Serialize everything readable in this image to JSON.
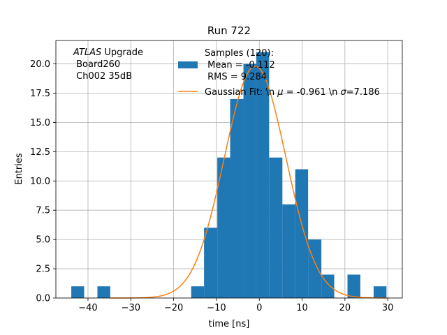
{
  "chart_data": {
    "type": "bar",
    "title": "Run 722",
    "xlabel": "time [ns]",
    "ylabel": "Entries",
    "xlim": [
      -47.5,
      33.4
    ],
    "ylim": [
      0,
      22
    ],
    "grid": true,
    "xticks": [
      -40,
      -30,
      -20,
      -10,
      0,
      10,
      20,
      30
    ],
    "xtick_labels": [
      "−40",
      "−30",
      "−20",
      "−10",
      "0",
      "10",
      "20",
      "30"
    ],
    "yticks": [
      0,
      2.5,
      5,
      7.5,
      10,
      12.5,
      15,
      17.5,
      20
    ],
    "ytick_labels": [
      "0.0",
      "2.5",
      "5.0",
      "7.5",
      "10.0",
      "12.5",
      "15.0",
      "17.5",
      "20.0"
    ],
    "bar_color": "#1f77b4",
    "fit_color": "#ff7f0e",
    "bins": [
      {
        "x0": -43.9,
        "x1": -40.9,
        "count": 1
      },
      {
        "x0": -37.8,
        "x1": -34.8,
        "count": 1
      },
      {
        "x0": -15.9,
        "x1": -12.9,
        "count": 1
      },
      {
        "x0": -12.9,
        "x1": -9.8,
        "count": 6
      },
      {
        "x0": -9.8,
        "x1": -6.8,
        "count": 12
      },
      {
        "x0": -6.8,
        "x1": -3.7,
        "count": 17
      },
      {
        "x0": -3.7,
        "x1": -0.7,
        "count": 20
      },
      {
        "x0": -0.7,
        "x1": 2.3,
        "count": 21
      },
      {
        "x0": 2.3,
        "x1": 5.4,
        "count": 12
      },
      {
        "x0": 5.4,
        "x1": 8.4,
        "count": 8
      },
      {
        "x0": 8.4,
        "x1": 11.4,
        "count": 11
      },
      {
        "x0": 11.4,
        "x1": 14.5,
        "count": 5
      },
      {
        "x0": 14.5,
        "x1": 17.5,
        "count": 2
      },
      {
        "x0": 20.6,
        "x1": 23.6,
        "count": 2
      },
      {
        "x0": 26.7,
        "x1": 29.7,
        "count": 1
      }
    ],
    "fit": {
      "mu": -0.961,
      "sigma": 7.186,
      "amplitude": 19.8
    },
    "annotation": {
      "italic": "ATLAS",
      "line1_rest": " Upgrade",
      "line2": " Board260",
      "line3": " Ch002 35dB"
    },
    "legend": {
      "position": "top-right",
      "hist_lines": [
        "Samples (120):",
        " Mean = -0.112",
        " RMS = 9.284"
      ],
      "fit_prefix": "Gaussian Fit: \\n ",
      "fit_mu_symbol": "μ",
      "fit_mid": " = -0.961 \\n ",
      "fit_sigma_symbol": "σ",
      "fit_suffix": "=7.186"
    }
  }
}
